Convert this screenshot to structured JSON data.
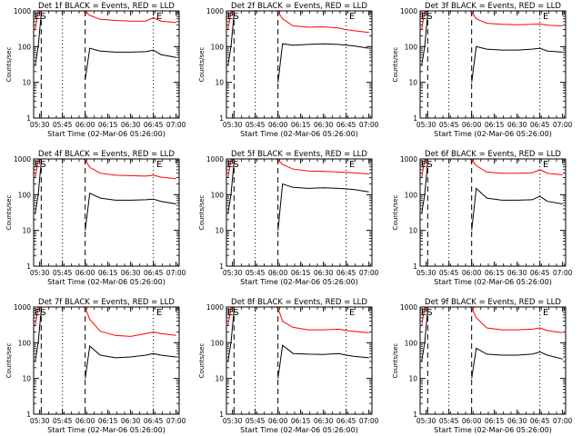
{
  "colors": {
    "events": "#000000",
    "lld": "#ff0000",
    "background": "#ffffff"
  },
  "chart_data": [
    {
      "type": "line",
      "title": "Det 1f BLACK = Events, RED = LLD",
      "xlabel": "Start Time (02-Mar-06 05:26:00)",
      "ylabel": "Counts/sec",
      "yscale": "log",
      "ylim": [
        1,
        1000
      ],
      "xlim": [
        "05:26",
        "07:02"
      ],
      "x_ticks": [
        "05:30",
        "05:45",
        "06:00",
        "06:15",
        "06:30",
        "06:45",
        "07:00"
      ],
      "y_ticks": [
        "1",
        "10",
        "100",
        "1000"
      ],
      "dotted_times": [
        "05:45",
        "06:45"
      ],
      "dashed_times": [
        "05:31",
        "06:00"
      ],
      "markers": [
        {
          "label": "ES",
          "time": "05:26"
        },
        {
          "label": "E",
          "time": "06:47"
        }
      ],
      "x": [
        "05:27",
        "05:29",
        "05:31",
        "05:35",
        "05:45",
        "05:59",
        "06:00",
        "06:03",
        "06:10",
        "06:20",
        "06:30",
        "06:40",
        "06:45",
        "06:50",
        "07:00"
      ],
      "series": [
        {
          "name": "BLACK = Events",
          "values": [
            30,
            100,
            800,
            null,
            null,
            null,
            12,
            90,
            75,
            70,
            70,
            72,
            80,
            60,
            50
          ]
        },
        {
          "name": "RED = LLD",
          "values": [
            300,
            1000,
            1000,
            null,
            null,
            1000,
            1000,
            750,
            580,
            540,
            520,
            520,
            650,
            520,
            470
          ]
        }
      ]
    },
    {
      "type": "line",
      "title": "Det 2f BLACK = Events, RED = LLD",
      "xlabel": "Start Time (02-Mar-06 05:26:00)",
      "ylabel": "Counts/sec",
      "yscale": "log",
      "ylim": [
        1,
        1000
      ],
      "xlim": [
        "05:26",
        "07:02"
      ],
      "x_ticks": [
        "05:30",
        "05:45",
        "06:00",
        "06:15",
        "06:30",
        "06:45",
        "07:00"
      ],
      "y_ticks": [
        "1",
        "10",
        "100",
        "1000"
      ],
      "dotted_times": [
        "05:45",
        "06:45"
      ],
      "dashed_times": [
        "05:31",
        "06:00"
      ],
      "markers": [
        {
          "label": "ES",
          "time": "05:26"
        },
        {
          "label": "E",
          "time": "06:47"
        }
      ],
      "x": [
        "05:27",
        "05:29",
        "05:31",
        "05:35",
        "05:45",
        "05:59",
        "06:00",
        "06:03",
        "06:10",
        "06:20",
        "06:30",
        "06:40",
        "06:45",
        "06:50",
        "07:00"
      ],
      "series": [
        {
          "name": "BLACK = Events",
          "values": [
            30,
            100,
            800,
            null,
            null,
            null,
            10,
            120,
            110,
            115,
            120,
            115,
            110,
            105,
            90
          ]
        },
        {
          "name": "RED = LLD",
          "values": [
            300,
            1000,
            1000,
            null,
            null,
            1000,
            1000,
            600,
            380,
            350,
            360,
            330,
            300,
            280,
            250
          ]
        }
      ]
    },
    {
      "type": "line",
      "title": "Det 3f BLACK = Events, RED = LLD",
      "xlabel": "Start Time (02-Mar-06 05:26:00)",
      "ylabel": "Counts/sec",
      "yscale": "log",
      "ylim": [
        1,
        1000
      ],
      "xlim": [
        "05:26",
        "07:02"
      ],
      "x_ticks": [
        "05:30",
        "05:45",
        "06:00",
        "06:15",
        "06:30",
        "06:45",
        "07:00"
      ],
      "y_ticks": [
        "1",
        "10",
        "100",
        "1000"
      ],
      "dotted_times": [
        "05:45",
        "06:45"
      ],
      "dashed_times": [
        "05:31",
        "06:00"
      ],
      "markers": [
        {
          "label": "ES",
          "time": "05:26"
        },
        {
          "label": "E",
          "time": "06:47"
        }
      ],
      "x": [
        "05:27",
        "05:29",
        "05:31",
        "05:35",
        "05:45",
        "05:59",
        "06:00",
        "06:03",
        "06:10",
        "06:20",
        "06:30",
        "06:40",
        "06:45",
        "06:50",
        "07:00"
      ],
      "series": [
        {
          "name": "BLACK = Events",
          "values": [
            30,
            100,
            800,
            null,
            null,
            null,
            10,
            100,
            85,
            80,
            80,
            85,
            90,
            75,
            70
          ]
        },
        {
          "name": "RED = LLD",
          "values": [
            300,
            1000,
            1000,
            null,
            null,
            1000,
            1000,
            600,
            450,
            420,
            410,
            420,
            430,
            400,
            380
          ]
        }
      ]
    },
    {
      "type": "line",
      "title": "Det 4f BLACK = Events, RED = LLD",
      "xlabel": "Start Time (02-Mar-06 05:26:00)",
      "ylabel": "Counts/sec",
      "yscale": "log",
      "ylim": [
        1,
        1000
      ],
      "xlim": [
        "05:26",
        "07:02"
      ],
      "x_ticks": [
        "05:30",
        "05:45",
        "06:00",
        "06:15",
        "06:30",
        "06:45",
        "07:00"
      ],
      "y_ticks": [
        "1",
        "10",
        "100",
        "1000"
      ],
      "dotted_times": [
        "05:45",
        "06:45"
      ],
      "dashed_times": [
        "05:31",
        "06:00"
      ],
      "markers": [
        {
          "label": "ES",
          "time": "05:26"
        },
        {
          "label": "E",
          "time": "06:47"
        }
      ],
      "x": [
        "05:27",
        "05:29",
        "05:31",
        "05:35",
        "05:45",
        "05:59",
        "06:00",
        "06:03",
        "06:10",
        "06:20",
        "06:30",
        "06:40",
        "06:45",
        "06:50",
        "07:00"
      ],
      "series": [
        {
          "name": "BLACK = Events",
          "values": [
            30,
            100,
            800,
            null,
            null,
            null,
            10,
            110,
            80,
            70,
            70,
            72,
            75,
            65,
            55
          ]
        },
        {
          "name": "RED = LLD",
          "values": [
            300,
            1000,
            1000,
            null,
            null,
            1000,
            1000,
            580,
            400,
            350,
            340,
            330,
            350,
            310,
            280
          ]
        }
      ]
    },
    {
      "type": "line",
      "title": "Det 5f BLACK = Events, RED = LLD",
      "xlabel": "Start Time (02-Mar-06 05:26:00)",
      "ylabel": "Counts/sec",
      "yscale": "log",
      "ylim": [
        1,
        1000
      ],
      "xlim": [
        "05:26",
        "07:02"
      ],
      "x_ticks": [
        "05:30",
        "05:45",
        "06:00",
        "06:15",
        "06:30",
        "06:45",
        "07:00"
      ],
      "y_ticks": [
        "1",
        "10",
        "100",
        "1000"
      ],
      "dotted_times": [
        "05:45",
        "06:45"
      ],
      "dashed_times": [
        "05:31",
        "06:00"
      ],
      "markers": [
        {
          "label": "ES",
          "time": "05:26"
        },
        {
          "label": "E",
          "time": "06:47"
        }
      ],
      "x": [
        "05:27",
        "05:29",
        "05:31",
        "05:35",
        "05:45",
        "05:59",
        "06:00",
        "06:03",
        "06:10",
        "06:20",
        "06:30",
        "06:40",
        "06:45",
        "06:50",
        "07:00"
      ],
      "series": [
        {
          "name": "BLACK = Events",
          "values": [
            30,
            100,
            800,
            null,
            null,
            null,
            10,
            200,
            160,
            150,
            155,
            150,
            145,
            140,
            120
          ]
        },
        {
          "name": "RED = LLD",
          "values": [
            300,
            1000,
            1000,
            null,
            null,
            1000,
            1000,
            700,
            520,
            460,
            450,
            430,
            420,
            410,
            380
          ]
        }
      ]
    },
    {
      "type": "line",
      "title": "Det 6f BLACK = Events, RED = LLD",
      "xlabel": "Start Time (02-Mar-06 05:26:00)",
      "ylabel": "Counts/sec",
      "yscale": "log",
      "ylim": [
        1,
        1000
      ],
      "xlim": [
        "05:26",
        "07:02"
      ],
      "x_ticks": [
        "05:30",
        "05:45",
        "06:00",
        "06:15",
        "06:30",
        "06:45",
        "07:00"
      ],
      "y_ticks": [
        "1",
        "10",
        "100",
        "1000"
      ],
      "dotted_times": [
        "05:45",
        "06:45"
      ],
      "dashed_times": [
        "05:31",
        "06:00"
      ],
      "markers": [
        {
          "label": "ES",
          "time": "05:26"
        },
        {
          "label": "E",
          "time": "06:47"
        }
      ],
      "x": [
        "05:27",
        "05:29",
        "05:31",
        "05:35",
        "05:45",
        "05:59",
        "06:00",
        "06:03",
        "06:10",
        "06:20",
        "06:30",
        "06:40",
        "06:45",
        "06:50",
        "07:00"
      ],
      "series": [
        {
          "name": "BLACK = Events",
          "values": [
            30,
            100,
            800,
            null,
            null,
            null,
            10,
            150,
            80,
            70,
            70,
            72,
            90,
            65,
            55
          ]
        },
        {
          "name": "RED = LLD",
          "values": [
            300,
            1000,
            1000,
            null,
            null,
            1000,
            1000,
            650,
            430,
            400,
            400,
            410,
            500,
            400,
            360
          ]
        }
      ]
    },
    {
      "type": "line",
      "title": "Det 7f BLACK = Events, RED = LLD",
      "xlabel": "Start Time (02-Mar-06 05:26:00)",
      "ylabel": "Counts/sec",
      "yscale": "log",
      "ylim": [
        1,
        1000
      ],
      "xlim": [
        "05:26",
        "07:02"
      ],
      "x_ticks": [
        "05:30",
        "05:45",
        "06:00",
        "06:15",
        "06:30",
        "06:45",
        "07:00"
      ],
      "y_ticks": [
        "1",
        "10",
        "100",
        "1000"
      ],
      "dotted_times": [
        "05:45",
        "06:45"
      ],
      "dashed_times": [
        "05:31",
        "06:00"
      ],
      "markers": [
        {
          "label": "ES",
          "time": "05:26"
        },
        {
          "label": "E",
          "time": "06:47"
        }
      ],
      "x": [
        "05:27",
        "05:29",
        "05:31",
        "05:35",
        "05:45",
        "05:59",
        "06:00",
        "06:03",
        "06:10",
        "06:20",
        "06:30",
        "06:40",
        "06:45",
        "06:50",
        "07:00"
      ],
      "series": [
        {
          "name": "BLACK = Events",
          "values": [
            30,
            100,
            800,
            null,
            null,
            null,
            10,
            80,
            45,
            38,
            40,
            45,
            50,
            45,
            40
          ]
        },
        {
          "name": "RED = LLD",
          "values": [
            300,
            1000,
            1000,
            null,
            null,
            1000,
            1000,
            450,
            210,
            160,
            150,
            180,
            200,
            180,
            160
          ]
        }
      ]
    },
    {
      "type": "line",
      "title": "Det 8f BLACK = Events, RED = LLD",
      "xlabel": "Start Time (02-Mar-06 05:26:00)",
      "ylabel": "Counts/sec",
      "yscale": "log",
      "ylim": [
        1,
        1000
      ],
      "xlim": [
        "05:26",
        "07:02"
      ],
      "x_ticks": [
        "05:30",
        "05:45",
        "06:00",
        "06:15",
        "06:30",
        "06:45",
        "07:00"
      ],
      "y_ticks": [
        "1",
        "10",
        "100",
        "1000"
      ],
      "dotted_times": [
        "05:45",
        "06:45"
      ],
      "dashed_times": [
        "05:31",
        "06:00"
      ],
      "markers": [
        {
          "label": "ES",
          "time": "05:26"
        },
        {
          "label": "E",
          "time": "06:47"
        }
      ],
      "x": [
        "05:27",
        "05:29",
        "05:31",
        "05:35",
        "05:45",
        "05:59",
        "06:00",
        "06:03",
        "06:10",
        "06:20",
        "06:30",
        "06:40",
        "06:45",
        "06:50",
        "07:00"
      ],
      "series": [
        {
          "name": "BLACK = Events",
          "values": [
            30,
            100,
            800,
            null,
            null,
            null,
            10,
            85,
            50,
            48,
            47,
            50,
            45,
            42,
            38
          ]
        },
        {
          "name": "RED = LLD",
          "values": [
            300,
            1000,
            1000,
            null,
            null,
            1000,
            1000,
            400,
            270,
            230,
            230,
            240,
            220,
            210,
            190
          ]
        }
      ]
    },
    {
      "type": "line",
      "title": "Det 9f BLACK = Events, RED = LLD",
      "xlabel": "Start Time (02-Mar-06 05:26:00)",
      "ylabel": "Counts/sec",
      "yscale": "log",
      "ylim": [
        1,
        1000
      ],
      "xlim": [
        "05:26",
        "07:02"
      ],
      "x_ticks": [
        "05:30",
        "05:45",
        "06:00",
        "06:15",
        "06:30",
        "06:45",
        "07:00"
      ],
      "y_ticks": [
        "1",
        "10",
        "100",
        "1000"
      ],
      "dotted_times": [
        "05:45",
        "06:45"
      ],
      "dashed_times": [
        "05:31",
        "06:00"
      ],
      "markers": [
        {
          "label": "ES",
          "time": "05:26"
        },
        {
          "label": "E",
          "time": "06:47"
        }
      ],
      "x": [
        "05:27",
        "05:29",
        "05:31",
        "05:35",
        "05:45",
        "05:59",
        "06:00",
        "06:03",
        "06:10",
        "06:20",
        "06:30",
        "06:40",
        "06:45",
        "06:50",
        "07:00"
      ],
      "series": [
        {
          "name": "BLACK = Events",
          "values": [
            30,
            100,
            800,
            null,
            null,
            null,
            10,
            70,
            48,
            45,
            45,
            48,
            55,
            45,
            35
          ]
        },
        {
          "name": "RED = LLD",
          "values": [
            300,
            1000,
            1000,
            null,
            null,
            1000,
            1000,
            500,
            260,
            230,
            230,
            240,
            260,
            220,
            190
          ]
        }
      ]
    }
  ]
}
